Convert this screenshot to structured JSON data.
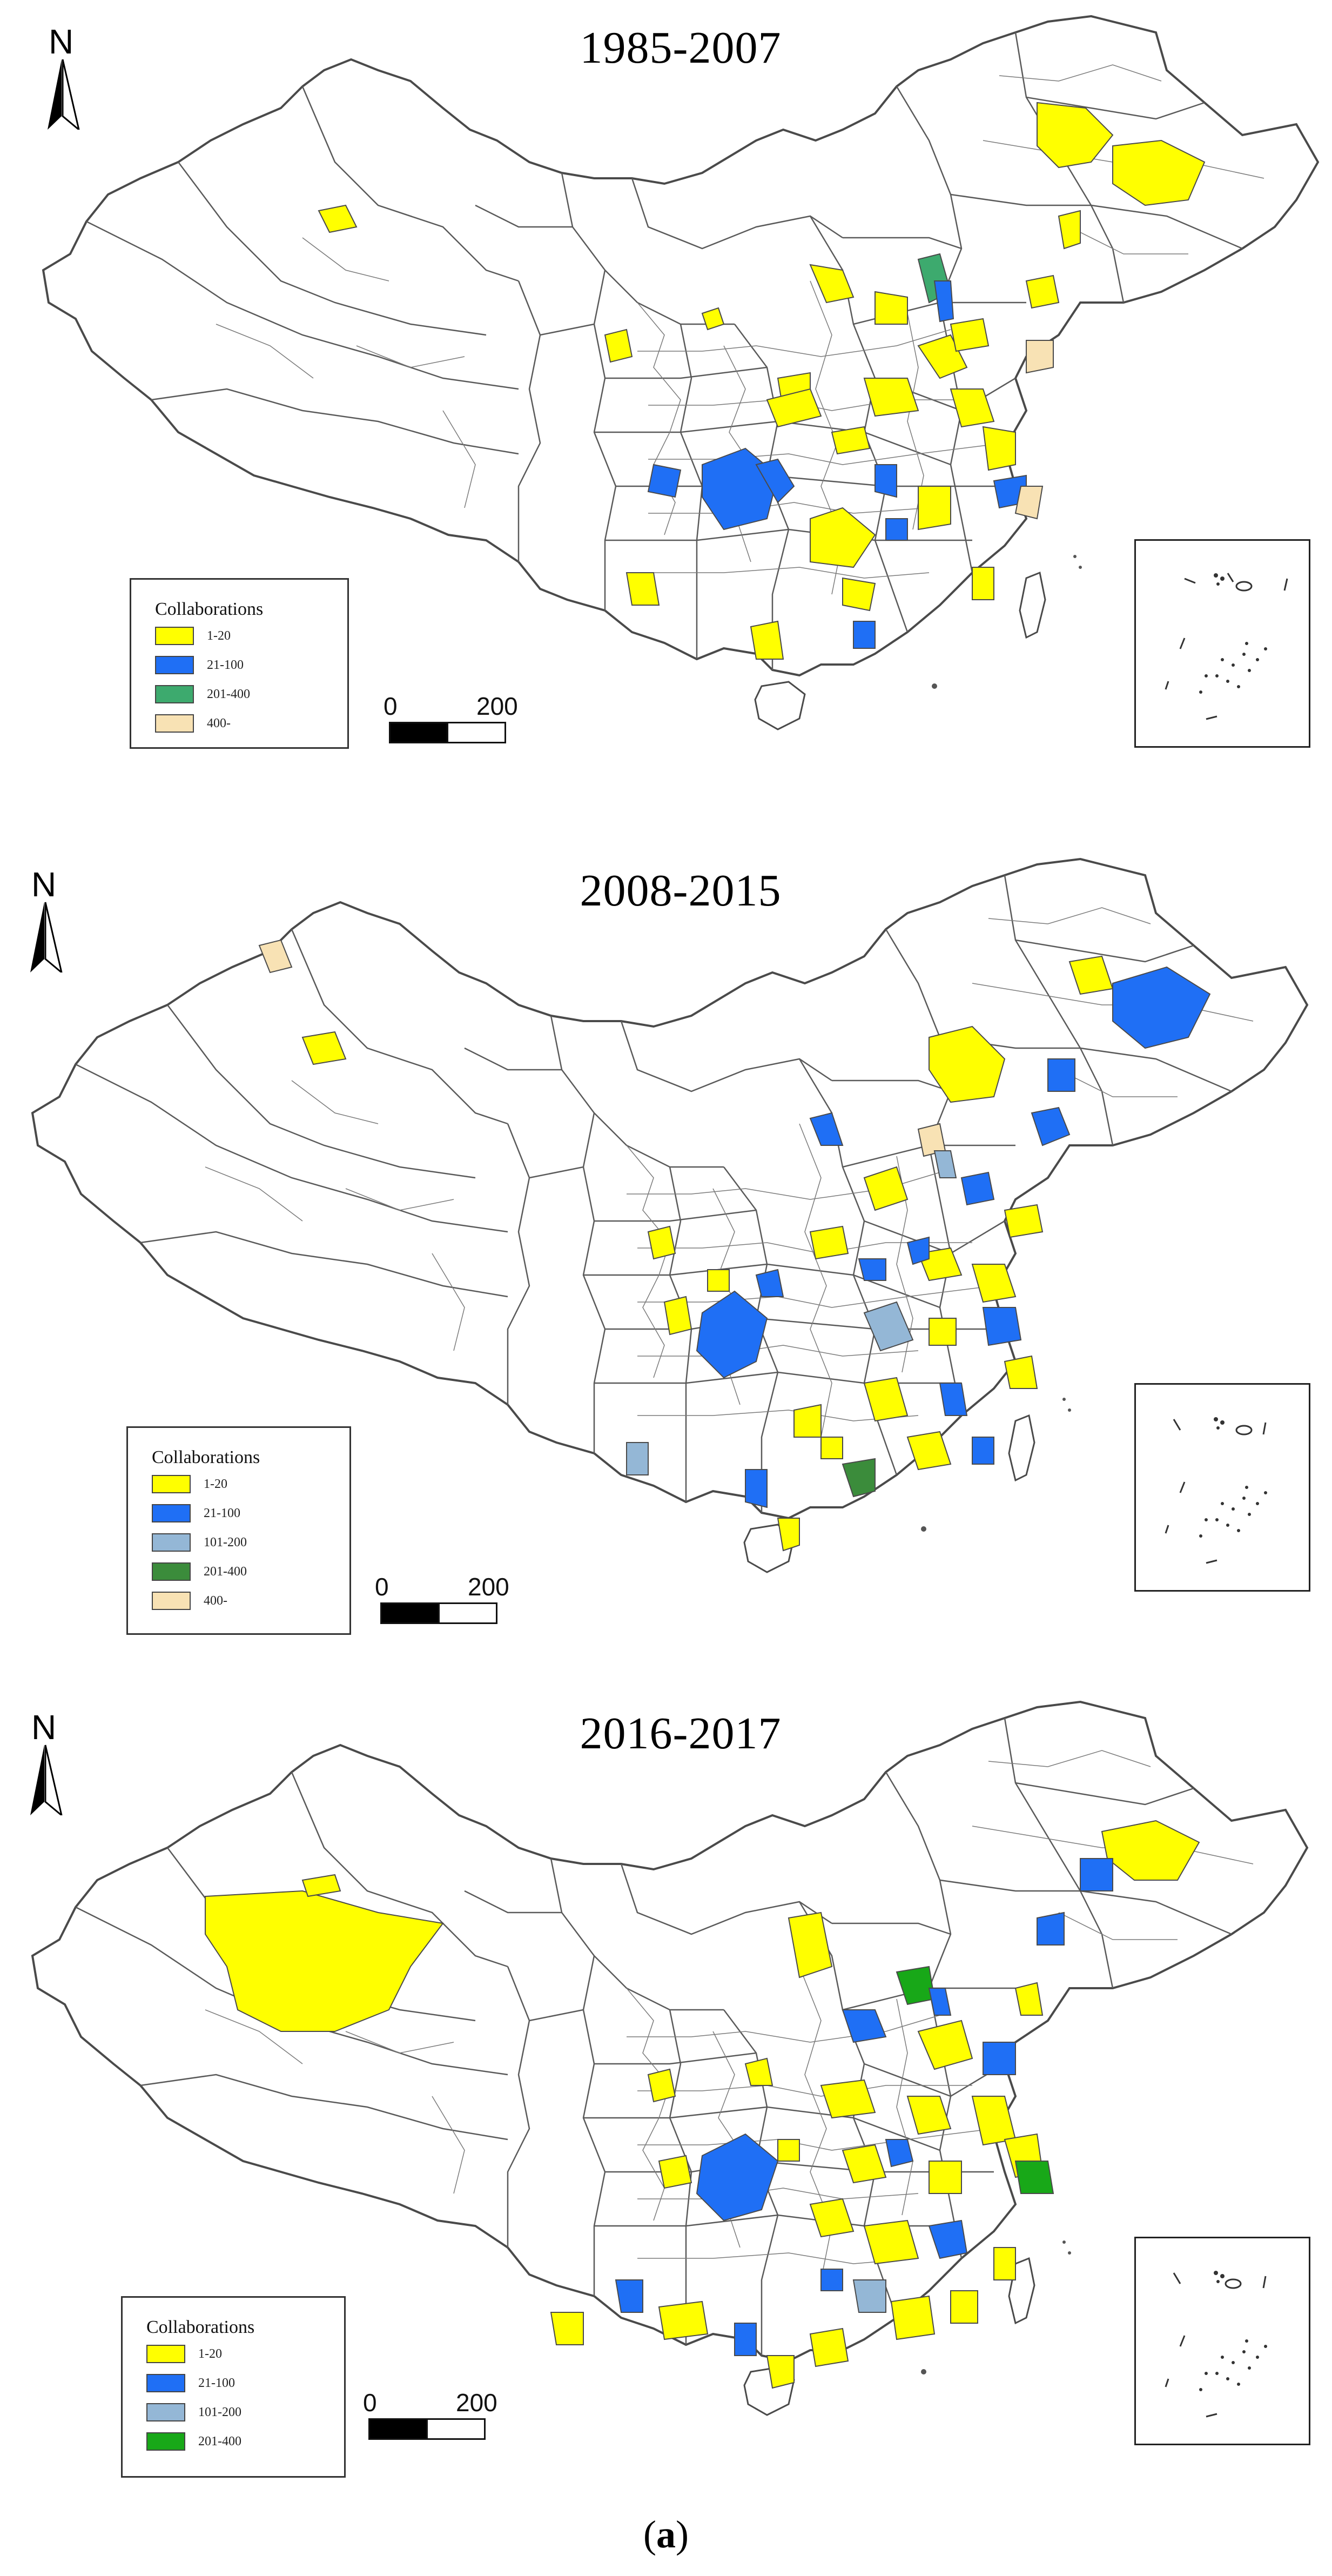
{
  "caption": {
    "open": "(",
    "letter": "a",
    "close": ")"
  },
  "colors": {
    "class_1_20": "#ffff00",
    "class_21_100": "#1f6ff5",
    "class_101_200": "#94b7d6",
    "class_201_400_a": "#3daa6e",
    "class_201_400_b": "#3b8c3b",
    "class_201_400_c": "#18a818",
    "class_400_plus": "#f8e2b4",
    "boundary": "#4a4a4a"
  },
  "panels": [
    {
      "title": "1985-2007",
      "north_label": "N",
      "legend": {
        "title": "Collaborations",
        "items": [
          {
            "label": "1-20",
            "color": "#ffff00"
          },
          {
            "label": "21-100",
            "color": "#1f6ff5"
          },
          {
            "label": "201-400",
            "color": "#3daa6e"
          },
          {
            "label": "400-",
            "color": "#f8e2b4"
          }
        ]
      },
      "scale": {
        "start": "0",
        "end": "200"
      }
    },
    {
      "title": "2008-2015",
      "north_label": "N",
      "legend": {
        "title": "Collaborations",
        "items": [
          {
            "label": "1-20",
            "color": "#ffff00"
          },
          {
            "label": "21-100",
            "color": "#1f6ff5"
          },
          {
            "label": "101-200",
            "color": "#94b7d6"
          },
          {
            "label": "201-400",
            "color": "#3b8c3b"
          },
          {
            "label": "400-",
            "color": "#f8e2b4"
          }
        ]
      },
      "scale": {
        "start": "0",
        "end": "200"
      }
    },
    {
      "title": "2016-2017",
      "north_label": "N",
      "legend": {
        "title": "Collaborations",
        "items": [
          {
            "label": "1-20",
            "color": "#ffff00"
          },
          {
            "label": "21-100",
            "color": "#1f6ff5"
          },
          {
            "label": "101-200",
            "color": "#94b7d6"
          },
          {
            "label": "201-400",
            "color": "#18a818"
          }
        ]
      },
      "scale": {
        "start": "0",
        "end": "200"
      }
    }
  ]
}
